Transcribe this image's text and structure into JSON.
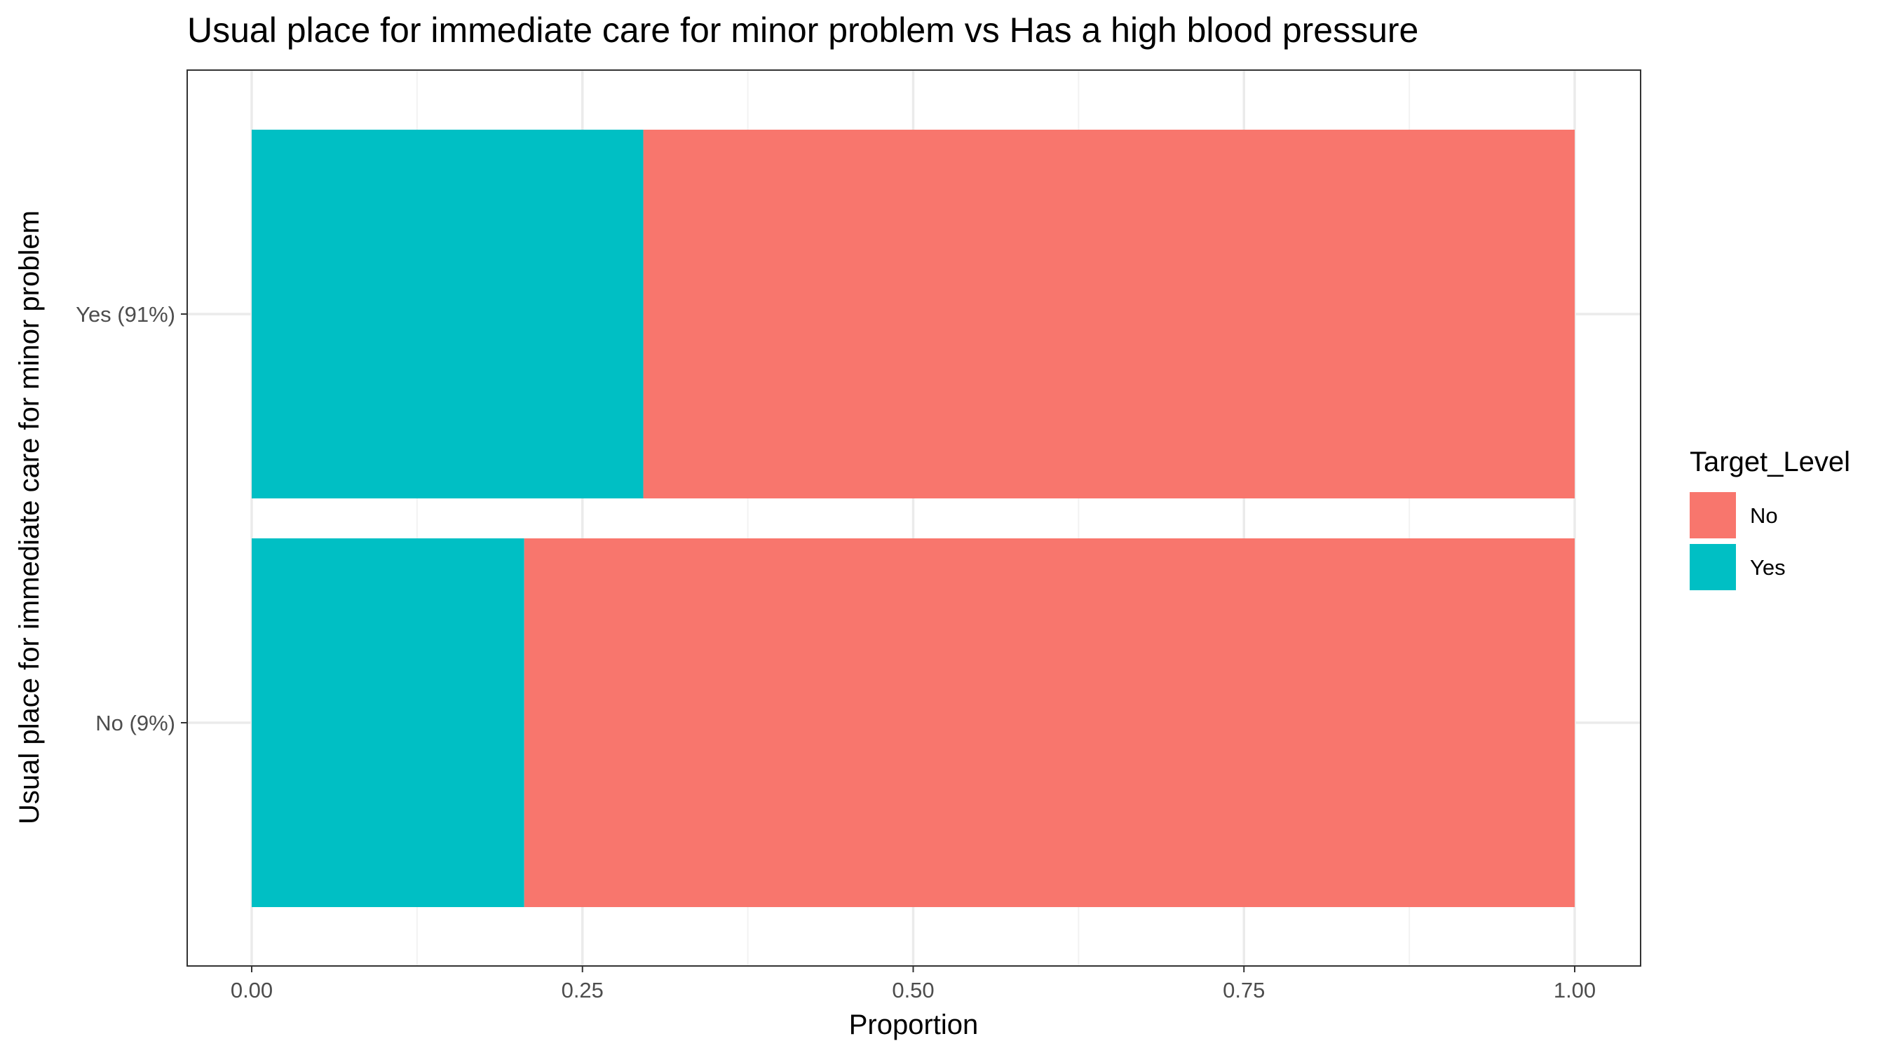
{
  "chart_data": {
    "type": "bar",
    "orientation": "horizontal",
    "stacked": true,
    "title": "Usual place for immediate care for minor problem vs Has a high blood pressure",
    "xlabel": "Proportion",
    "ylabel": "Usual place for immediate care for minor problem",
    "categories": [
      "No (9%)",
      "Yes (91%)"
    ],
    "series": [
      {
        "name": "Yes",
        "values": [
          0.206,
          0.296
        ],
        "color": "#00BFC4"
      },
      {
        "name": "No",
        "values": [
          0.794,
          0.704
        ],
        "color": "#F8766D"
      }
    ],
    "xlim": [
      0,
      1
    ],
    "x_ticks": [
      0,
      0.25,
      0.5,
      0.75,
      1
    ],
    "x_tick_labels": [
      "0.00",
      "0.25",
      "0.50",
      "0.75",
      "1.00"
    ],
    "grid": true,
    "legend": {
      "title": "Target_Level",
      "position": "right",
      "entries": [
        {
          "label": "No",
          "color": "#F8766D"
        },
        {
          "label": "Yes",
          "color": "#00BFC4"
        }
      ]
    }
  }
}
